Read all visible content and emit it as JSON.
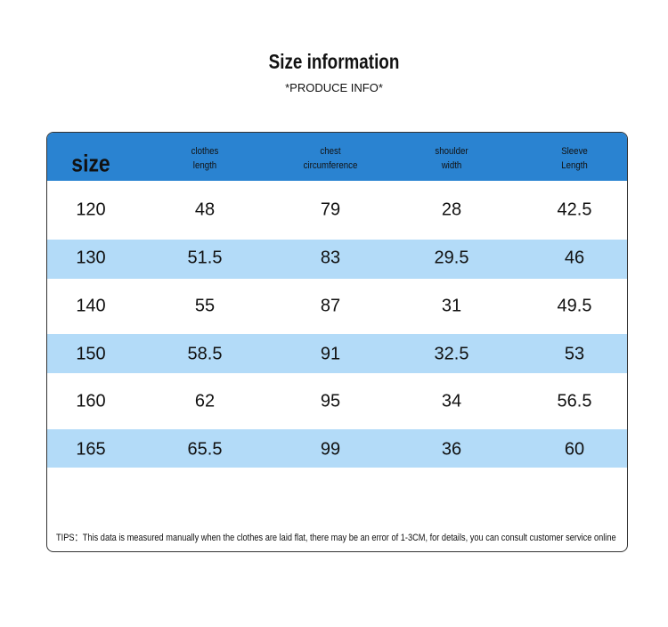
{
  "header": {
    "title": "Size information",
    "subtitle": "*PRODUCE INFO*"
  },
  "table": {
    "columns": [
      [
        "size"
      ],
      [
        "clothes",
        "length"
      ],
      [
        "chest",
        "circumference"
      ],
      [
        "shoulder",
        "width"
      ],
      [
        "Sleeve",
        "Length"
      ]
    ],
    "rows": [
      [
        120,
        48,
        79,
        28,
        42.5
      ],
      [
        130,
        51.5,
        83,
        29.5,
        46
      ],
      [
        140,
        55,
        87,
        31,
        49.5
      ],
      [
        150,
        58.5,
        91,
        32.5,
        53
      ],
      [
        160,
        62,
        95,
        34,
        56.5
      ],
      [
        165,
        65.5,
        99,
        36,
        60
      ]
    ],
    "tips": "TIPS：This data is measured manually when the clothes are laid flat, there may be an error of 1-3CM, for details, you can consult customer service online"
  }
}
